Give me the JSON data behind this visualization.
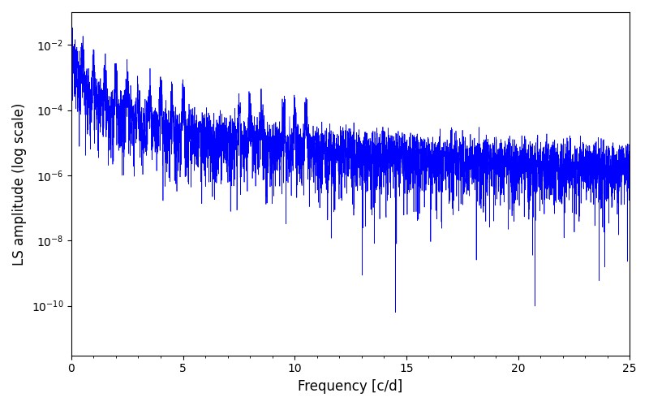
{
  "title": "",
  "xlabel": "Frequency [c/d]",
  "ylabel": "LS amplitude (log scale)",
  "xmin": 0,
  "xmax": 25,
  "ymin": 3e-12,
  "ymax": 0.1,
  "line_color": "#0000ff",
  "background_color": "#ffffff",
  "figsize": [
    8.0,
    5.0
  ],
  "dpi": 100,
  "n_points": 5000,
  "seed": 42
}
